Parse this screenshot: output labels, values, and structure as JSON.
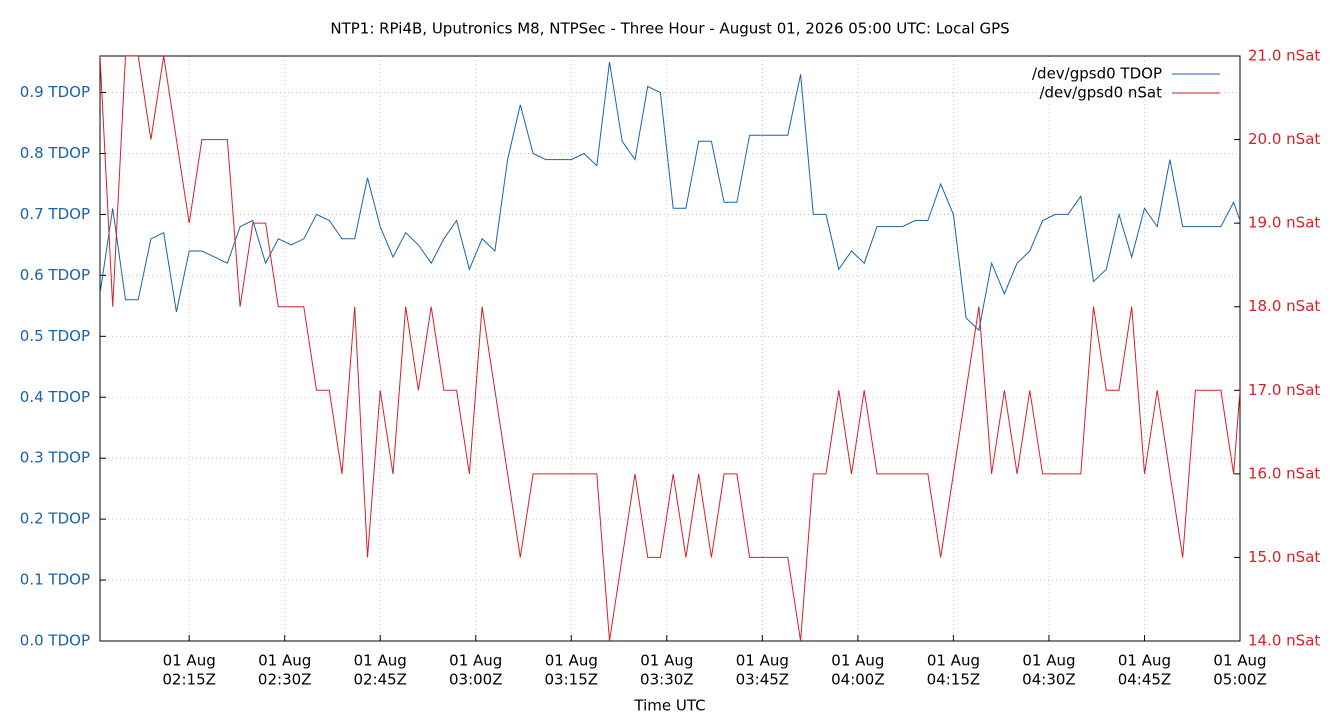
{
  "chart_data": {
    "type": "line",
    "title": "NTP1: RPi4B, Uputronics M8, NTPSec - Three Hour - August 01, 2026 05:00 UTC: Local GPS",
    "xlabel": "Time UTC",
    "x": [
      121,
      123,
      125,
      127,
      129,
      131,
      133,
      135,
      137,
      139,
      141,
      143,
      145,
      147,
      149,
      151,
      153,
      155,
      157,
      159,
      161,
      163,
      165,
      167,
      169,
      171,
      173,
      175,
      177,
      179,
      181,
      183,
      185,
      187,
      189,
      191,
      193,
      195,
      197,
      199,
      201,
      203,
      205,
      207,
      209,
      211,
      213,
      215,
      217,
      219,
      221,
      223,
      225,
      227,
      229,
      231,
      233,
      235,
      237,
      239,
      241,
      243,
      245,
      247,
      249,
      251,
      253,
      255,
      257,
      259,
      261,
      263,
      265,
      267,
      269,
      271,
      273,
      275,
      277,
      279,
      281,
      283,
      285,
      287,
      289,
      291,
      293,
      295,
      297,
      299,
      300
    ],
    "series": [
      {
        "name": "/dev/gpsd0 TDOP",
        "color": "#1a63a8",
        "values": [
          0.57,
          0.71,
          0.56,
          0.56,
          0.66,
          0.67,
          0.54,
          0.64,
          0.64,
          0.63,
          0.62,
          0.68,
          0.69,
          0.62,
          0.66,
          0.65,
          0.66,
          0.7,
          0.69,
          0.66,
          0.66,
          0.76,
          0.68,
          0.63,
          0.67,
          0.65,
          0.62,
          0.66,
          0.69,
          0.61,
          0.66,
          0.64,
          0.79,
          0.88,
          0.8,
          0.79,
          0.79,
          0.79,
          0.8,
          0.78,
          0.95,
          0.82,
          0.79,
          0.91,
          0.9,
          0.71,
          0.71,
          0.82,
          0.82,
          0.72,
          0.72,
          0.83,
          0.83,
          0.83,
          0.83,
          0.93,
          0.7,
          0.7,
          0.61,
          0.64,
          0.62,
          0.68,
          0.68,
          0.68,
          0.69,
          0.69,
          0.75,
          0.7,
          0.53,
          0.51,
          0.62,
          0.57,
          0.62,
          0.64,
          0.69,
          0.7,
          0.7,
          0.73,
          0.59,
          0.61,
          0.7,
          0.63,
          0.71,
          0.68,
          0.79,
          0.68,
          0.68,
          0.68,
          0.68,
          0.72,
          0.69
        ]
      },
      {
        "name": "/dev/gpsd0 nSat",
        "color": "#d62028",
        "axis": "y2",
        "values": [
          21,
          18,
          21,
          21,
          20,
          21,
          20,
          19,
          20,
          20,
          20,
          18,
          19,
          19,
          18,
          18,
          18,
          17,
          17,
          16,
          18,
          15,
          17,
          16,
          18,
          17,
          18,
          17,
          17,
          16,
          18,
          17,
          16,
          15,
          16,
          16,
          16,
          16,
          16,
          16,
          14,
          15,
          16,
          15,
          15,
          16,
          15,
          16,
          15,
          16,
          16,
          15,
          15,
          15,
          15,
          14,
          16,
          16,
          17,
          16,
          17,
          16,
          16,
          16,
          16,
          16,
          15,
          16,
          17,
          18,
          16,
          17,
          16,
          17,
          16,
          16,
          16,
          16,
          18,
          17,
          17,
          18,
          16,
          17,
          16,
          15,
          17,
          17,
          17,
          16,
          17
        ]
      }
    ],
    "xlim": [
      121,
      300
    ],
    "xticks": [
      {
        "value": 135,
        "date": "01 Aug",
        "label": "02:15Z"
      },
      {
        "value": 150,
        "date": "01 Aug",
        "label": "02:30Z"
      },
      {
        "value": 165,
        "date": "01 Aug",
        "label": "02:45Z"
      },
      {
        "value": 180,
        "date": "01 Aug",
        "label": "03:00Z"
      },
      {
        "value": 195,
        "date": "01 Aug",
        "label": "03:15Z"
      },
      {
        "value": 210,
        "date": "01 Aug",
        "label": "03:30Z"
      },
      {
        "value": 225,
        "date": "01 Aug",
        "label": "03:45Z"
      },
      {
        "value": 240,
        "date": "01 Aug",
        "label": "04:00Z"
      },
      {
        "value": 255,
        "date": "01 Aug",
        "label": "04:15Z"
      },
      {
        "value": 270,
        "date": "01 Aug",
        "label": "04:30Z"
      },
      {
        "value": 285,
        "date": "01 Aug",
        "label": "04:45Z"
      },
      {
        "value": 300,
        "date": "01 Aug",
        "label": "05:00Z"
      }
    ],
    "ylim": [
      0,
      0.96
    ],
    "yticks": [
      {
        "value": 0,
        "label": "0.0 TDOP"
      },
      {
        "value": 0.1,
        "label": "0.1 TDOP"
      },
      {
        "value": 0.2,
        "label": "0.2 TDOP"
      },
      {
        "value": 0.3,
        "label": "0.3 TDOP"
      },
      {
        "value": 0.4,
        "label": "0.4 TDOP"
      },
      {
        "value": 0.5,
        "label": "0.5 TDOP"
      },
      {
        "value": 0.6,
        "label": "0.6 TDOP"
      },
      {
        "value": 0.7,
        "label": "0.7 TDOP"
      },
      {
        "value": 0.8,
        "label": "0.8 TDOP"
      },
      {
        "value": 0.9,
        "label": "0.9 TDOP"
      }
    ],
    "y2lim": [
      14,
      21
    ],
    "y2ticks": [
      {
        "value": 14,
        "label": "14.0 nSat"
      },
      {
        "value": 15,
        "label": "15.0 nSat"
      },
      {
        "value": 16,
        "label": "16.0 nSat"
      },
      {
        "value": 17,
        "label": "17.0 nSat"
      },
      {
        "value": 18,
        "label": "18.0 nSat"
      },
      {
        "value": 19,
        "label": "19.0 nSat"
      },
      {
        "value": 20,
        "label": "20.0 nSat"
      },
      {
        "value": 21,
        "label": "21.0 nSat"
      }
    ],
    "grid": true,
    "legend": "top-right"
  }
}
